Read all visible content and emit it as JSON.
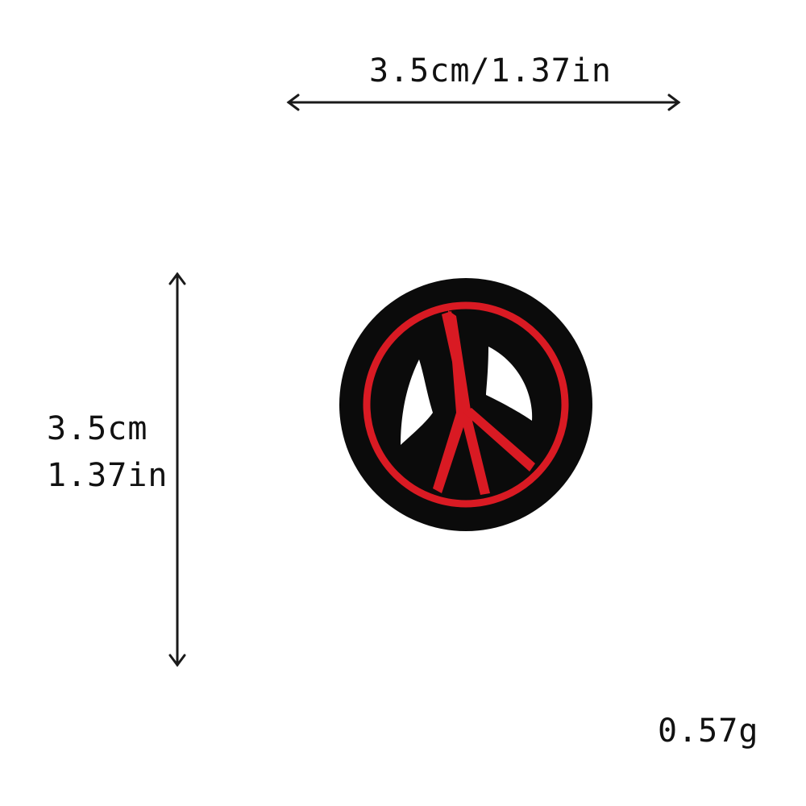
{
  "width_label": "3.5cm/1.37in",
  "height_label_cm": "3.5cm",
  "height_label_in": "1.37in",
  "weight_label": "0.57g",
  "product": {
    "icon": "peace-sign-patch",
    "colors": {
      "patch": "#0b0b0b",
      "embroidery": "#d91a23",
      "arrows": "#1a1a1a"
    }
  }
}
